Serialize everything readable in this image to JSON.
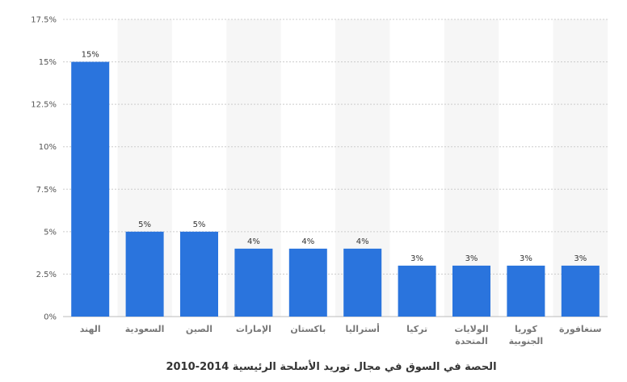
{
  "chart_data": {
    "type": "bar",
    "categories": [
      "الهند",
      "السعودية",
      "الصين",
      "الإمارات",
      "باكستان",
      "أستراليا",
      "تركيا",
      "الولايات المتحدة",
      "كوريا الجنوبية",
      "سنغافورة"
    ],
    "category_lines": [
      [
        "الهند"
      ],
      [
        "السعودية"
      ],
      [
        "الصين"
      ],
      [
        "الإمارات"
      ],
      [
        "باكستان"
      ],
      [
        "أستراليا"
      ],
      [
        "تركيا"
      ],
      [
        "الولايات",
        "المتحدة"
      ],
      [
        "كوريا",
        "الجنوبية"
      ],
      [
        "سنغافورة"
      ]
    ],
    "values": [
      15,
      5,
      5,
      4,
      4,
      4,
      3,
      3,
      3,
      3
    ],
    "data_labels": [
      "15%",
      "5%",
      "5%",
      "4%",
      "4%",
      "4%",
      "3%",
      "3%",
      "3%",
      "3%"
    ],
    "yticks": [
      0,
      2.5,
      5,
      7.5,
      10,
      12.5,
      15,
      17.5
    ],
    "ytick_labels": [
      "0%",
      "2.5%",
      "5%",
      "7.5%",
      "10%",
      "12.5%",
      "15%",
      "17.5%"
    ],
    "ylim": [
      0,
      17.5
    ],
    "title": "الحصة في السوق في مجال توريد الأسلحة الرئيسية 2014-2010",
    "xlabel": "",
    "ylabel": "",
    "grid": true,
    "bar_color": "#2a74dd",
    "band_color": "#f6f6f6",
    "grid_color": "#cccccc"
  }
}
